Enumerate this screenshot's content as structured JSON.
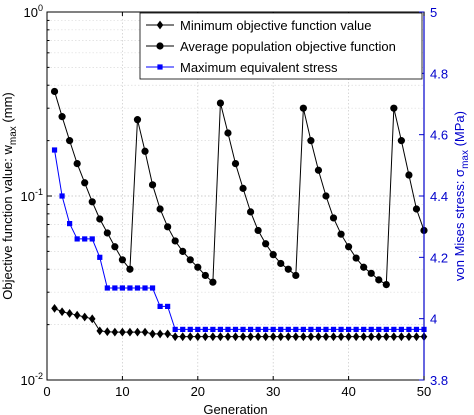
{
  "chart_data": {
    "type": "line",
    "xlabel": "Generation",
    "ylabel": "Objective function value: w",
    "ylabel_sub": "max",
    "ylabel_unit": " (mm)",
    "y2label": "von Mises stress: σ",
    "y2label_sub": "max",
    "y2label_unit": " (MPa)",
    "xlim": [
      0,
      50
    ],
    "xticks": [
      "0",
      "10",
      "20",
      "30",
      "40",
      "50"
    ],
    "y_scale": "log",
    "ylim": [
      0.01,
      1
    ],
    "yticks": [
      {
        "base": "10",
        "exp": "-2"
      },
      {
        "base": "10",
        "exp": "-1"
      },
      {
        "base": "10",
        "exp": "0"
      }
    ],
    "y2lim": [
      3.8,
      5
    ],
    "y2ticks": [
      "3.8",
      "4",
      "4.2",
      "4.4",
      "4.6",
      "4.8",
      "5"
    ],
    "grid": true,
    "legend_position": "top-right",
    "series": [
      {
        "name": "Minimum objective function value",
        "axis": "left",
        "marker": "diamond",
        "color": "#000000",
        "x": [
          1,
          2,
          3,
          4,
          5,
          6,
          7,
          8,
          9,
          10,
          11,
          12,
          13,
          14,
          15,
          16,
          17,
          18,
          19,
          20,
          21,
          22,
          23,
          24,
          25,
          26,
          27,
          28,
          29,
          30,
          31,
          32,
          33,
          34,
          35,
          36,
          37,
          38,
          39,
          40,
          41,
          42,
          43,
          44,
          45,
          46,
          47,
          48,
          49,
          50
        ],
        "y": [
          0.0245,
          0.0235,
          0.023,
          0.0225,
          0.022,
          0.0215,
          0.0185,
          0.0183,
          0.0182,
          0.0182,
          0.0182,
          0.0182,
          0.0182,
          0.0178,
          0.0178,
          0.0178,
          0.0172,
          0.0172,
          0.0172,
          0.0172,
          0.0172,
          0.0172,
          0.0172,
          0.0172,
          0.0172,
          0.0172,
          0.0172,
          0.0172,
          0.0172,
          0.0172,
          0.0172,
          0.0172,
          0.0172,
          0.0172,
          0.0172,
          0.0172,
          0.0172,
          0.0172,
          0.0172,
          0.0172,
          0.0172,
          0.0172,
          0.0172,
          0.0172,
          0.0172,
          0.0172,
          0.0172,
          0.0172,
          0.0172,
          0.0172
        ]
      },
      {
        "name": "Average population objective function",
        "axis": "left",
        "marker": "circle",
        "color": "#000000",
        "x": [
          1,
          2,
          3,
          4,
          5,
          6,
          7,
          8,
          9,
          10,
          11,
          12,
          13,
          14,
          15,
          16,
          17,
          18,
          19,
          20,
          21,
          22,
          23,
          24,
          25,
          26,
          27,
          28,
          29,
          30,
          31,
          32,
          33,
          34,
          35,
          36,
          37,
          38,
          39,
          40,
          41,
          42,
          43,
          44,
          45,
          46,
          47,
          48,
          49,
          50
        ],
        "y": [
          0.37,
          0.27,
          0.2,
          0.15,
          0.118,
          0.093,
          0.075,
          0.063,
          0.053,
          0.045,
          0.04,
          0.26,
          0.175,
          0.115,
          0.085,
          0.068,
          0.057,
          0.05,
          0.045,
          0.041,
          0.037,
          0.034,
          0.32,
          0.22,
          0.15,
          0.11,
          0.082,
          0.065,
          0.055,
          0.048,
          0.043,
          0.04,
          0.037,
          0.3,
          0.2,
          0.138,
          0.1,
          0.076,
          0.062,
          0.053,
          0.046,
          0.041,
          0.038,
          0.035,
          0.033,
          0.3,
          0.2,
          0.13,
          0.085,
          0.065
        ]
      },
      {
        "name": "Maximum equivalent stress",
        "axis": "right",
        "marker": "square",
        "color": "#0000ff",
        "x": [
          1,
          2,
          3,
          4,
          5,
          6,
          7,
          8,
          9,
          10,
          11,
          12,
          13,
          14,
          15,
          16,
          17,
          18,
          19,
          20,
          21,
          22,
          23,
          24,
          25,
          26,
          27,
          28,
          29,
          30,
          31,
          32,
          33,
          34,
          35,
          36,
          37,
          38,
          39,
          40,
          41,
          42,
          43,
          44,
          45,
          46,
          47,
          48,
          49,
          50
        ],
        "y": [
          4.55,
          4.4,
          4.31,
          4.26,
          4.26,
          4.26,
          4.2,
          4.1,
          4.1,
          4.1,
          4.1,
          4.1,
          4.1,
          4.1,
          4.04,
          4.04,
          3.965,
          3.965,
          3.965,
          3.965,
          3.965,
          3.965,
          3.965,
          3.965,
          3.965,
          3.965,
          3.965,
          3.965,
          3.965,
          3.965,
          3.965,
          3.965,
          3.965,
          3.965,
          3.965,
          3.965,
          3.965,
          3.965,
          3.965,
          3.965,
          3.965,
          3.965,
          3.965,
          3.965,
          3.965,
          3.965,
          3.965,
          3.965,
          3.965,
          3.965
        ]
      }
    ]
  }
}
